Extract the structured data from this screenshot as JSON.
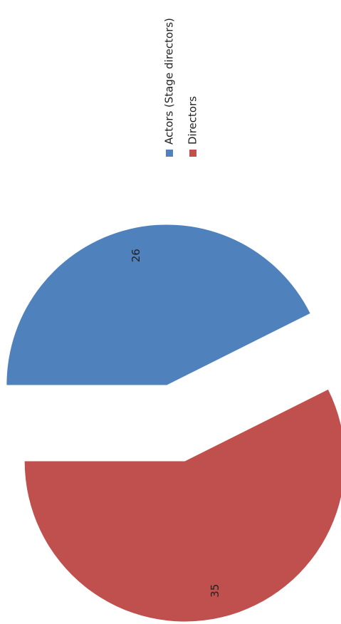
{
  "chart_data": {
    "type": "pie",
    "categories": [
      "Actors (Stage directors)",
      "Directors"
    ],
    "values": [
      26,
      35
    ],
    "colors": [
      "#4f81bd",
      "#c0504d"
    ],
    "legend": "right"
  }
}
